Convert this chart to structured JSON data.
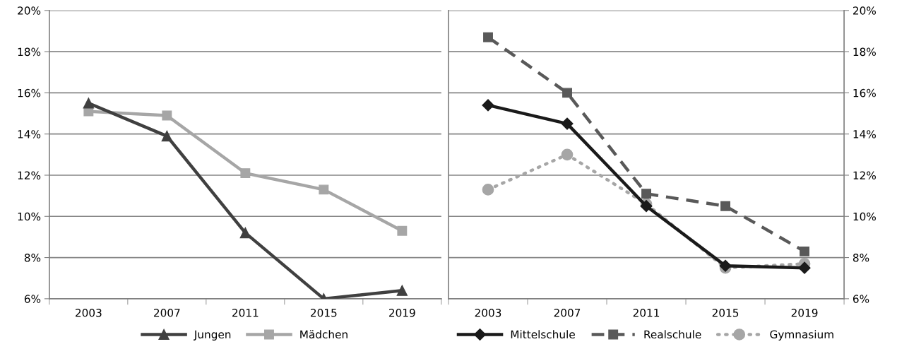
{
  "chart_data": [
    {
      "type": "line",
      "categories": [
        "2003",
        "2007",
        "2011",
        "2015",
        "2019"
      ],
      "ylim": [
        6,
        20
      ],
      "yticks": [
        {
          "value": 6,
          "label": "6%"
        },
        {
          "value": 8,
          "label": "8%"
        },
        {
          "value": 10,
          "label": "10%"
        },
        {
          "value": 12,
          "label": "12%"
        },
        {
          "value": 14,
          "label": "14%"
        },
        {
          "value": 16,
          "label": "16%"
        },
        {
          "value": 18,
          "label": "18%"
        },
        {
          "value": 20,
          "label": "20%"
        }
      ],
      "grid": "y",
      "legend": "bottom",
      "series": [
        {
          "name": "Jungen",
          "color": "#404040",
          "marker": "triangle",
          "line_style": "solid",
          "values": [
            15.5,
            13.9,
            9.2,
            6.0,
            6.4
          ]
        },
        {
          "name": "Mädchen",
          "color": "#a6a6a6",
          "marker": "square",
          "line_style": "solid",
          "values": [
            15.1,
            14.9,
            12.1,
            11.3,
            9.3
          ]
        }
      ]
    },
    {
      "type": "line",
      "categories": [
        "2003",
        "2007",
        "2011",
        "2015",
        "2019"
      ],
      "ylim": [
        6,
        20
      ],
      "yticks": [
        {
          "value": 6,
          "label": "6%"
        },
        {
          "value": 8,
          "label": "8%"
        },
        {
          "value": 10,
          "label": "10%"
        },
        {
          "value": 12,
          "label": "12%"
        },
        {
          "value": 14,
          "label": "14%"
        },
        {
          "value": 16,
          "label": "16%"
        },
        {
          "value": 18,
          "label": "18%"
        },
        {
          "value": 20,
          "label": "20%"
        }
      ],
      "grid": "y",
      "legend": "bottom",
      "series": [
        {
          "name": "Mittelschule",
          "color": "#1a1a1a",
          "marker": "diamond",
          "line_style": "solid",
          "values": [
            15.4,
            14.5,
            10.5,
            7.6,
            7.5
          ]
        },
        {
          "name": "Realschule",
          "color": "#595959",
          "marker": "square",
          "line_style": "dashed",
          "values": [
            18.7,
            16.0,
            11.1,
            10.5,
            8.3
          ]
        },
        {
          "name": "Gymnasium",
          "color": "#a6a6a6",
          "marker": "circle",
          "line_style": "dotted",
          "values": [
            11.3,
            13.0,
            10.6,
            7.5,
            7.7
          ]
        }
      ]
    }
  ]
}
